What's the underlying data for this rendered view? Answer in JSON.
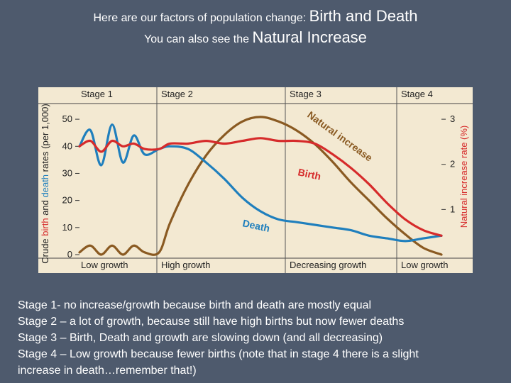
{
  "title": {
    "line1_small": "Here are our factors of population change:",
    "line1_big": "Birth and Death",
    "line2_small": "You can also see the",
    "line2_big": "Natural Increase"
  },
  "chart_data": {
    "type": "line",
    "stages": [
      {
        "label": "Stage 1",
        "growth": "Low growth"
      },
      {
        "label": "Stage 2",
        "growth": "High growth"
      },
      {
        "label": "Stage 3",
        "growth": "Decreasing growth"
      },
      {
        "label": "Stage 4",
        "growth": "Low growth"
      }
    ],
    "y_left": {
      "label_parts": [
        "Crude ",
        "birth",
        " and ",
        "death",
        " rates (per 1,000)"
      ],
      "ticks": [
        "0",
        "10",
        "20",
        "30",
        "40",
        "50"
      ],
      "ylim": [
        0,
        55
      ]
    },
    "y_right": {
      "label": "Natural increase rate (%)",
      "ticks": [
        "1",
        "2",
        "3"
      ],
      "ylim": [
        0,
        3.3
      ]
    },
    "x": [
      0,
      3,
      6,
      9,
      12,
      15,
      18,
      22,
      25,
      30,
      35,
      40,
      45,
      50,
      55,
      60,
      65,
      70,
      75,
      80,
      85,
      90,
      95,
      100
    ],
    "series": [
      {
        "name": "Birth",
        "color": "#d62b2b",
        "axis": "left",
        "values": [
          40,
          42,
          38,
          42,
          40,
          41,
          39,
          39,
          41,
          41,
          42,
          41,
          42,
          43,
          42,
          42,
          41,
          37,
          32,
          26,
          19,
          13,
          9,
          7
        ]
      },
      {
        "name": "Death",
        "color": "#1f7fbd",
        "axis": "left",
        "values": [
          40,
          46,
          33,
          48,
          34,
          44,
          37,
          39,
          40,
          39,
          34,
          28,
          21,
          16,
          13,
          12,
          11,
          10,
          9,
          7,
          6,
          5,
          6,
          7
        ]
      },
      {
        "name": "Natural increase",
        "color": "#8a5a22",
        "axis": "right",
        "values": [
          0.05,
          0.2,
          0.0,
          0.2,
          0.0,
          0.2,
          0.05,
          0.05,
          0.7,
          1.55,
          2.2,
          2.65,
          2.95,
          3.05,
          2.95,
          2.75,
          2.45,
          2.05,
          1.6,
          1.2,
          0.8,
          0.45,
          0.15,
          0.0
        ]
      }
    ]
  },
  "body_lines": [
    "Stage 1- no increase/growth because birth and death are mostly equal",
    "Stage 2 – a lot of growth, because still have high births but now fewer deaths",
    "Stage 3 – Birth, Death and growth are slowing down (and all decreasing)",
    "Stage 4 – Low growth because fewer births (note that in stage 4 there is a slight",
    "increase in death…remember that!)"
  ]
}
